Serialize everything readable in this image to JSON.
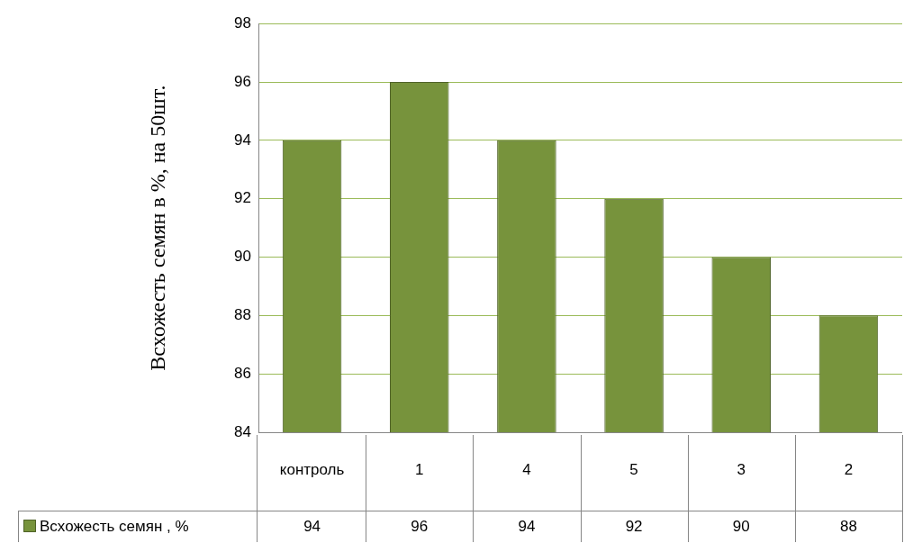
{
  "chart_data": {
    "type": "bar",
    "ylabel": "Всхожесть семян в %, на 50шт.",
    "categories": [
      "контроль",
      "1",
      "4",
      "5",
      "3",
      "2"
    ],
    "series": [
      {
        "name": "Всхожесть семян , %",
        "color": "#77933c",
        "values": [
          94,
          96,
          94,
          92,
          90,
          88
        ]
      }
    ],
    "ylim": [
      84,
      98
    ],
    "yticks": [
      84,
      86,
      88,
      90,
      92,
      94,
      96,
      98
    ],
    "grid": "y",
    "legend": "bottom",
    "data_labels": true
  }
}
